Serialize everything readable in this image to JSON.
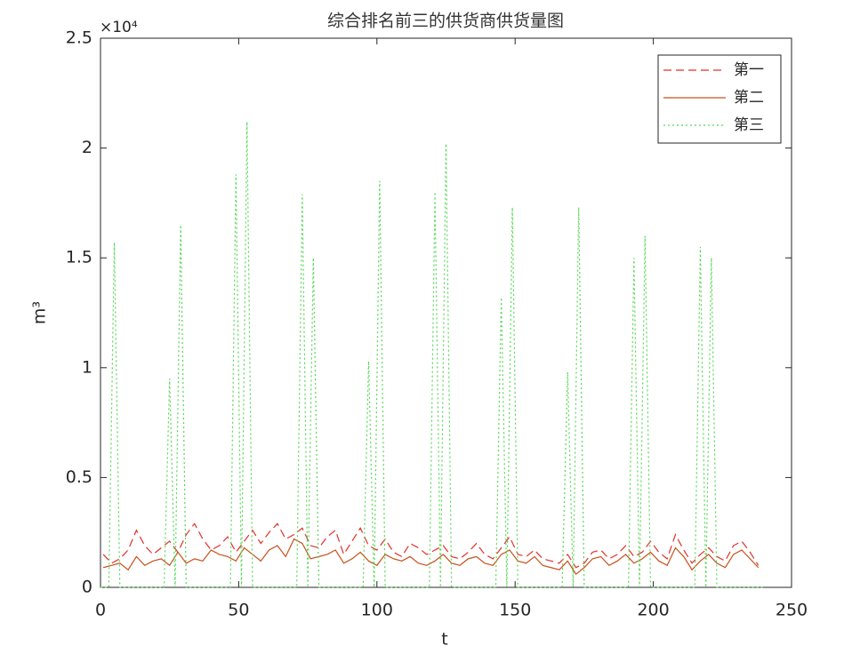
{
  "chart_data": {
    "type": "line",
    "title": "综合排名前三的供货商供货量图",
    "xlabel": "t",
    "ylabel": "m³",
    "y_exponent": "×10⁴",
    "xlim": [
      0,
      250
    ],
    "xticks": [
      0,
      50,
      100,
      150,
      200,
      250
    ],
    "ylim": [
      0,
      25000
    ],
    "yticks": [
      {
        "value": 0,
        "label": "0"
      },
      {
        "value": 5000,
        "label": "0.5"
      },
      {
        "value": 10000,
        "label": "1"
      },
      {
        "value": 15000,
        "label": "1.5"
      },
      {
        "value": 20000,
        "label": "2"
      },
      {
        "value": 25000,
        "label": "2.5"
      }
    ],
    "legend": "northeast",
    "grid": false,
    "series": [
      {
        "name": "第一",
        "color": "#e0302a",
        "linestyle": "dashed",
        "x": [
          1,
          4,
          7,
          10,
          13,
          16,
          19,
          22,
          25,
          28,
          31,
          34,
          37,
          40,
          43,
          46,
          49,
          52,
          55,
          58,
          61,
          64,
          67,
          70,
          73,
          76,
          79,
          82,
          85,
          88,
          91,
          94,
          97,
          100,
          103,
          106,
          109,
          112,
          115,
          118,
          121,
          124,
          127,
          130,
          133,
          136,
          139,
          142,
          145,
          148,
          151,
          154,
          157,
          160,
          163,
          166,
          169,
          172,
          175,
          178,
          181,
          184,
          187,
          190,
          193,
          196,
          199,
          202,
          205,
          208,
          211,
          214,
          217,
          220,
          223,
          226,
          229,
          232,
          235,
          238
        ],
        "values": [
          1500,
          1100,
          1300,
          1700,
          2600,
          1900,
          1500,
          1800,
          2100,
          1600,
          2400,
          2900,
          2200,
          1700,
          1900,
          2300,
          1600,
          2100,
          2600,
          2000,
          2500,
          2900,
          2200,
          2400,
          2700,
          1900,
          1800,
          2300,
          2600,
          1500,
          2100,
          2700,
          1900,
          1700,
          2200,
          1600,
          1400,
          2000,
          1800,
          1500,
          1700,
          1900,
          1400,
          1300,
          1600,
          2000,
          1500,
          1300,
          1800,
          2300,
          1500,
          1400,
          1700,
          1300,
          1200,
          1100,
          1500,
          900,
          1100,
          1600,
          1700,
          1300,
          1500,
          1900,
          1400,
          1600,
          2100,
          1600,
          1300,
          2400,
          1700,
          1100,
          1500,
          1800,
          1400,
          1200,
          1900,
          2100,
          1600,
          1000
        ]
      },
      {
        "name": "第二",
        "color": "#c8501c",
        "linestyle": "solid",
        "x": [
          1,
          4,
          7,
          10,
          13,
          16,
          19,
          22,
          25,
          28,
          31,
          34,
          37,
          40,
          43,
          46,
          49,
          52,
          55,
          58,
          61,
          64,
          67,
          70,
          73,
          76,
          79,
          82,
          85,
          88,
          91,
          94,
          97,
          100,
          103,
          106,
          109,
          112,
          115,
          118,
          121,
          124,
          127,
          130,
          133,
          136,
          139,
          142,
          145,
          148,
          151,
          154,
          157,
          160,
          163,
          166,
          169,
          172,
          175,
          178,
          181,
          184,
          187,
          190,
          193,
          196,
          199,
          202,
          205,
          208,
          211,
          214,
          217,
          220,
          223,
          226,
          229,
          232,
          235,
          238
        ],
        "values": [
          900,
          1000,
          1100,
          800,
          1400,
          1000,
          1200,
          1300,
          1000,
          1600,
          1100,
          1300,
          1200,
          1700,
          1500,
          1400,
          1200,
          1800,
          1500,
          1200,
          1700,
          1900,
          1400,
          2200,
          2000,
          1300,
          1400,
          1500,
          1700,
          1100,
          1300,
          1600,
          1200,
          1000,
          1500,
          1300,
          1200,
          1400,
          1100,
          1000,
          1200,
          1500,
          1100,
          1000,
          1300,
          1400,
          1100,
          1000,
          1500,
          1700,
          1200,
          1100,
          1400,
          1000,
          900,
          800,
          1200,
          600,
          900,
          1300,
          1400,
          1000,
          1200,
          1500,
          1100,
          1300,
          1600,
          1200,
          1000,
          1800,
          1400,
          800,
          1200,
          1500,
          1100,
          900,
          1500,
          1700,
          1300,
          900
        ]
      },
      {
        "name": "第三",
        "color": "#55d855",
        "linestyle": "dotted",
        "x": [
          0,
          3,
          5,
          7,
          23,
          25,
          27,
          29,
          31,
          47,
          49,
          51,
          53,
          55,
          71,
          73,
          75,
          77,
          79,
          95,
          97,
          99,
          101,
          103,
          119,
          121,
          123,
          125,
          127,
          143,
          145,
          147,
          149,
          151,
          167,
          169,
          171,
          173,
          175,
          191,
          193,
          195,
          197,
          199,
          215,
          217,
          219,
          221,
          223,
          240
        ],
        "values": [
          0,
          0,
          15700,
          0,
          0,
          9500,
          0,
          16500,
          0,
          0,
          18800,
          0,
          21200,
          0,
          0,
          17900,
          0,
          15000,
          0,
          0,
          10300,
          0,
          18500,
          0,
          0,
          18000,
          0,
          20200,
          0,
          0,
          13200,
          0,
          17300,
          0,
          0,
          9800,
          0,
          17300,
          0,
          0,
          15000,
          0,
          16000,
          0,
          0,
          15500,
          0,
          15000,
          0,
          0
        ]
      }
    ]
  }
}
